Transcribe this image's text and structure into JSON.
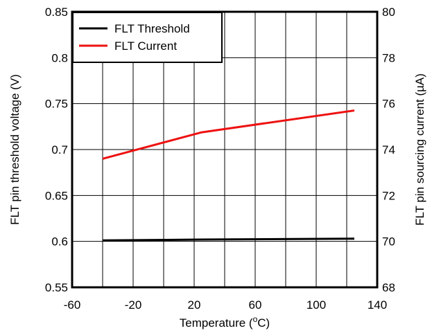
{
  "chart_data": {
    "type": "line",
    "xlabel_main": "Temperature (",
    "xlabel_sup": "o",
    "xlabel_tail": "C)",
    "ylabel_left": "FLT pin threshold voltage (V)",
    "ylabel_right": "FLT pin sourcing current (µA)",
    "xlim": [
      -60,
      140
    ],
    "x_ticks": [
      "-60",
      "-20",
      "20",
      "60",
      "100",
      "140"
    ],
    "y_left_lim": [
      0.55,
      0.85
    ],
    "y_left_ticks": [
      "0.55",
      "0.6",
      "0.65",
      "0.7",
      "0.75",
      "0.8",
      "0.85"
    ],
    "y_right_lim": [
      68,
      80
    ],
    "y_right_ticks": [
      "68",
      "70",
      "72",
      "74",
      "76",
      "78",
      "80"
    ],
    "x_grid_step": 20,
    "y_left_grid_step": 0.05,
    "grid": true,
    "legend_position": "top-left",
    "series": [
      {
        "name": "FLT Threshold",
        "axis": "left",
        "color": "#000000",
        "x": [
          -40,
          25,
          125
        ],
        "y": [
          0.601,
          0.602,
          0.603
        ]
      },
      {
        "name": "FLT Current",
        "axis": "right",
        "color": "#ee1111",
        "x": [
          -40,
          25,
          125
        ],
        "y": [
          73.6,
          74.75,
          75.7
        ]
      }
    ]
  }
}
